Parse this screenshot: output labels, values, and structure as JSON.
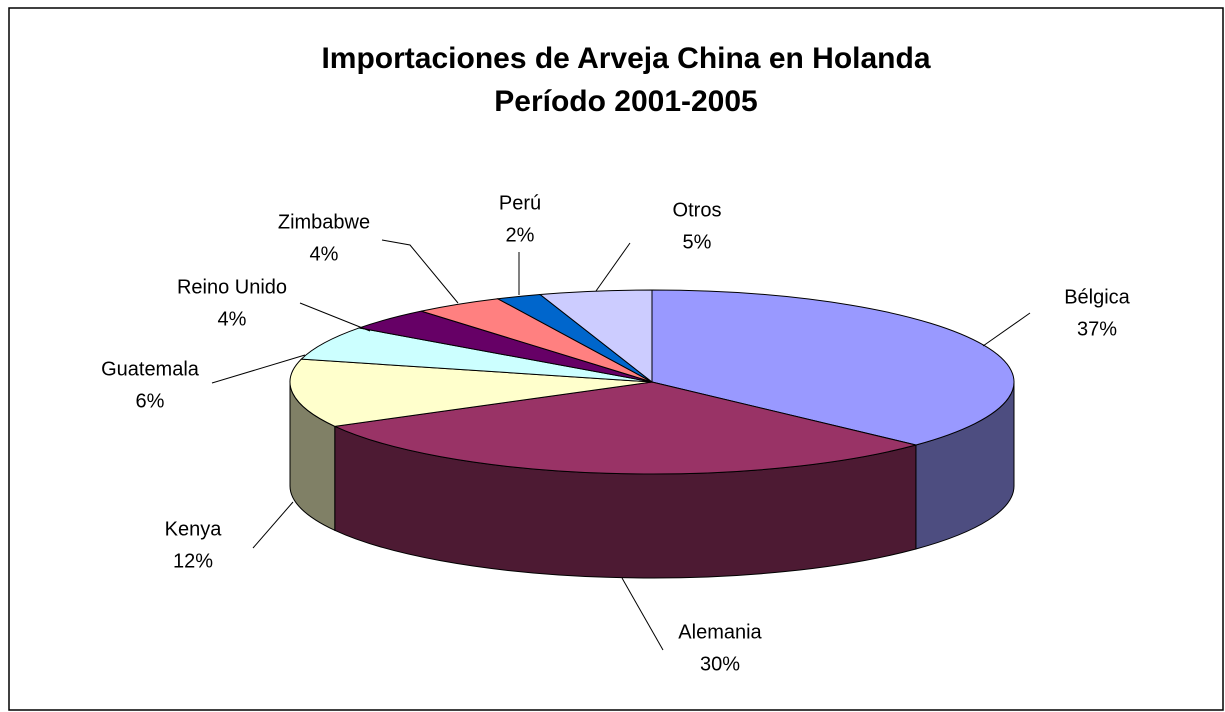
{
  "chart_data": {
    "type": "pie3d",
    "title": "Importaciones de Arveja China en Holanda",
    "subtitle": "Período 2001-2005",
    "categories": [
      "Bélgica",
      "Alemania",
      "Kenya",
      "Guatemala",
      "Reino Unido",
      "Zimbabwe",
      "Perú",
      "Otros"
    ],
    "values": [
      37,
      30,
      12,
      6,
      4,
      4,
      2,
      5
    ],
    "value_labels": [
      "37%",
      "30%",
      "12%",
      "6%",
      "4%",
      "4%",
      "2%",
      "5%"
    ],
    "colors": [
      "#9999ff",
      "#993366",
      "#ffffcc",
      "#ccffff",
      "#660066",
      "#ff8080",
      "#0066cc",
      "#ccccff"
    ]
  }
}
